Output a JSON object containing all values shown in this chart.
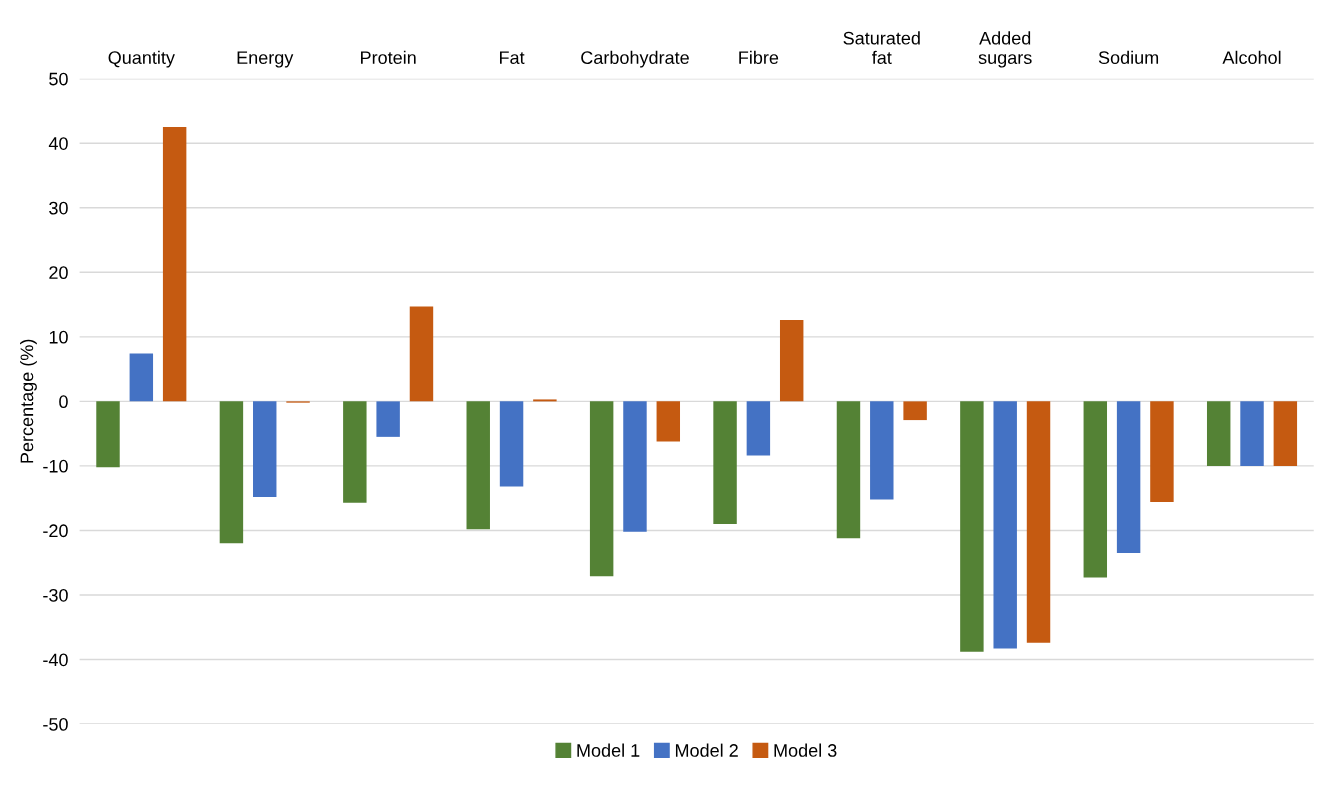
{
  "chart_data": {
    "type": "bar",
    "ylabel": "Percentage (%)",
    "categories": [
      "Quantity",
      "Energy",
      "Protein",
      "Fat",
      "Carbohydrate",
      "Fibre",
      "Saturated\nfat",
      "Added\nsugars",
      "Sodium",
      "Alcohol"
    ],
    "series": [
      {
        "name": "Model 1",
        "color": "#548235",
        "values": [
          -10.2,
          -22.0,
          -15.7,
          -19.8,
          -27.1,
          -19.0,
          -21.2,
          -38.8,
          -27.3,
          -10.0
        ]
      },
      {
        "name": "Model 2",
        "color": "#4472c4",
        "values": [
          7.4,
          -14.8,
          -5.5,
          -13.2,
          -20.2,
          -8.4,
          -15.2,
          -38.3,
          -23.5,
          -10.0
        ]
      },
      {
        "name": "Model 3",
        "color": "#c55a11",
        "values": [
          42.5,
          -0.2,
          14.7,
          0.3,
          -6.2,
          12.6,
          -2.9,
          -37.4,
          -15.6,
          -10.0
        ]
      }
    ],
    "ylim": [
      -50,
      50
    ],
    "yticks": [
      -50,
      -40,
      -30,
      -20,
      -10,
      0,
      10,
      20,
      30,
      40,
      50
    ],
    "grid": "y",
    "legend": "bottom"
  }
}
